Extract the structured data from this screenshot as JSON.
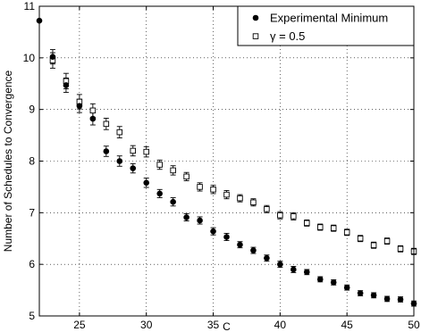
{
  "chart_data": {
    "type": "scatter",
    "xlabel": "C",
    "ylabel": "Number of Schedules to Convergence",
    "xlim": [
      22,
      50
    ],
    "ylim": [
      5,
      11
    ],
    "x_ticks": [
      "25",
      "30",
      "35",
      "40",
      "45",
      "50"
    ],
    "y_ticks": [
      "5",
      "6",
      "7",
      "8",
      "9",
      "10",
      "11"
    ],
    "grid": true,
    "grid_style": "dotted",
    "legend_position": "top-right",
    "error_bars": true,
    "series": [
      {
        "name": "Experimental Minimum",
        "marker": "filled-circle",
        "color": "#000000",
        "x": [
          22,
          23,
          24,
          25,
          26,
          27,
          28,
          29,
          30,
          31,
          32,
          33,
          34,
          35,
          36,
          37,
          38,
          39,
          40,
          41,
          42,
          43,
          44,
          45,
          46,
          47,
          48,
          49,
          50
        ],
        "y": [
          10.72,
          10.02,
          9.47,
          9.07,
          8.82,
          8.19,
          8.0,
          7.86,
          7.58,
          7.37,
          7.21,
          6.91,
          6.85,
          6.64,
          6.53,
          6.38,
          6.27,
          6.12,
          6.0,
          5.9,
          5.85,
          5.71,
          5.65,
          5.55,
          5.44,
          5.4,
          5.33,
          5.32,
          5.24
        ],
        "err": [
          0,
          0.14,
          0.14,
          0.13,
          0.12,
          0.1,
          0.1,
          0.09,
          0.09,
          0.08,
          0.08,
          0.07,
          0.07,
          0.07,
          0.07,
          0.06,
          0.06,
          0.06,
          0.06,
          0.06,
          0.05,
          0.05,
          0.05,
          0.05,
          0.05,
          0.05,
          0.05,
          0.05,
          0.05
        ]
      },
      {
        "name": "γ = 0.5",
        "marker": "open-square",
        "color": "#000000",
        "x": [
          23,
          24,
          25,
          26,
          27,
          28,
          29,
          30,
          31,
          32,
          33,
          34,
          35,
          36,
          37,
          38,
          39,
          40,
          41,
          42,
          43,
          44,
          45,
          46,
          47,
          48,
          49,
          50
        ],
        "y": [
          9.95,
          9.55,
          9.15,
          8.98,
          8.72,
          8.56,
          8.2,
          8.18,
          7.93,
          7.82,
          7.7,
          7.5,
          7.45,
          7.35,
          7.28,
          7.2,
          7.07,
          6.95,
          6.93,
          6.8,
          6.72,
          6.7,
          6.62,
          6.5,
          6.37,
          6.45,
          6.3,
          6.25
        ]
      }
    ]
  }
}
